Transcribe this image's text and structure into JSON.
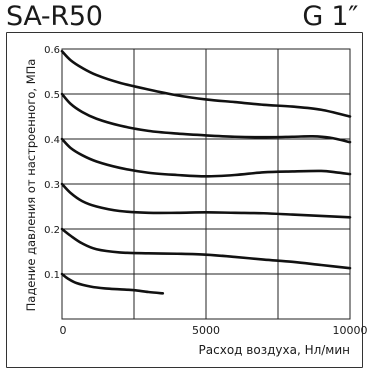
{
  "header": {
    "model": "SA-R50",
    "thread": "G 1″"
  },
  "chart_data": {
    "type": "line",
    "title": "",
    "xlabel": "Расход воздуха, Нл/мин",
    "ylabel": "Падение давления от настроенного, МПа",
    "xlim": [
      0,
      10000
    ],
    "ylim": [
      0,
      0.6
    ],
    "x_ticks": [
      0,
      5000,
      10000
    ],
    "x_tick_labels": [
      "0",
      "5000",
      "10000"
    ],
    "y_ticks": [
      0.1,
      0.2,
      0.3,
      0.4,
      0.5,
      0.6
    ],
    "y_tick_labels": [
      "0.1",
      "0.2",
      "0.3",
      "0.4",
      "0.5",
      "0.6"
    ],
    "x_grid": [
      2500,
      5000,
      7500,
      10000
    ],
    "grid": true,
    "legend": "none",
    "series": [
      {
        "x": [
          0,
          200,
          500,
          1000,
          1500,
          2000,
          2500,
          3000,
          3500
        ],
        "y": [
          0.1,
          0.09,
          0.08,
          0.072,
          0.068,
          0.066,
          0.064,
          0.06,
          0.057
        ]
      },
      {
        "x": [
          0,
          300,
          700,
          1200,
          2000,
          3000,
          4000,
          5000,
          6000,
          7000,
          8000,
          9000,
          10000
        ],
        "y": [
          0.2,
          0.185,
          0.168,
          0.155,
          0.148,
          0.146,
          0.145,
          0.143,
          0.138,
          0.132,
          0.127,
          0.12,
          0.113
        ]
      },
      {
        "x": [
          0,
          300,
          700,
          1200,
          2000,
          3000,
          4000,
          5000,
          6000,
          7000,
          8000,
          9000,
          10000
        ],
        "y": [
          0.3,
          0.28,
          0.262,
          0.25,
          0.24,
          0.236,
          0.236,
          0.237,
          0.236,
          0.235,
          0.232,
          0.229,
          0.226
        ]
      },
      {
        "x": [
          0,
          300,
          700,
          1200,
          2000,
          3000,
          4000,
          5000,
          6000,
          7000,
          8000,
          9000,
          9500,
          10000
        ],
        "y": [
          0.4,
          0.38,
          0.364,
          0.35,
          0.336,
          0.325,
          0.32,
          0.317,
          0.32,
          0.326,
          0.328,
          0.329,
          0.326,
          0.322
        ]
      },
      {
        "x": [
          0,
          300,
          700,
          1200,
          2000,
          3000,
          4000,
          5000,
          6000,
          7000,
          8000,
          8700,
          9300,
          10000
        ],
        "y": [
          0.5,
          0.478,
          0.46,
          0.445,
          0.43,
          0.418,
          0.412,
          0.408,
          0.405,
          0.404,
          0.405,
          0.406,
          0.403,
          0.393
        ]
      },
      {
        "x": [
          0,
          300,
          700,
          1200,
          2000,
          3000,
          4000,
          5000,
          6000,
          7000,
          8000,
          9000,
          10000
        ],
        "y": [
          0.595,
          0.575,
          0.558,
          0.542,
          0.525,
          0.51,
          0.497,
          0.488,
          0.482,
          0.476,
          0.472,
          0.465,
          0.45
        ]
      }
    ]
  }
}
